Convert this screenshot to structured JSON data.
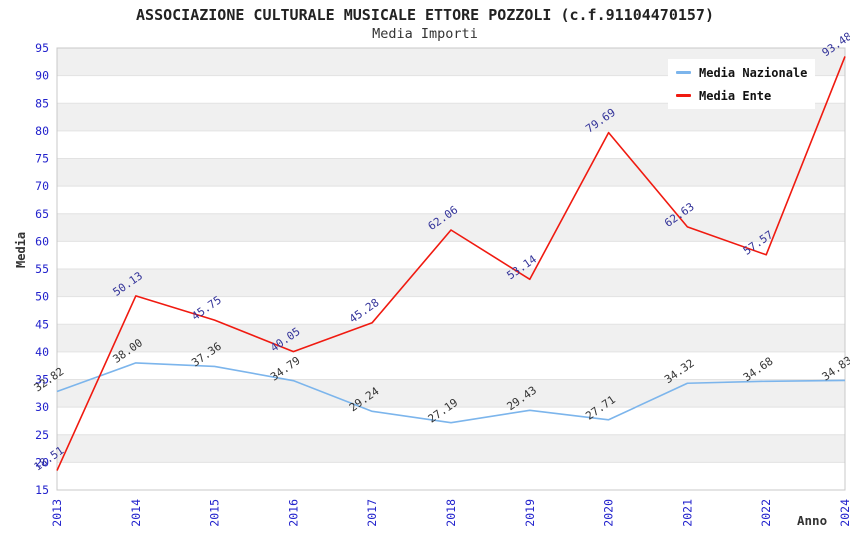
{
  "header": {
    "title": "ASSOCIAZIONE CULTURALE MUSICALE ETTORE POZZOLI (c.f.91104470157)",
    "subtitle": "Media Importi"
  },
  "legend": {
    "items": [
      {
        "label": "Media Nazionale",
        "color": "#7cb5ec"
      },
      {
        "label": "Media Ente",
        "color": "#f01a10"
      }
    ]
  },
  "axes": {
    "y_title": "Media",
    "x_title": "Anno"
  },
  "chart_data": {
    "type": "line",
    "title": "ASSOCIAZIONE CULTURALE MUSICALE ETTORE POZZOLI (c.f.91104470157)",
    "subtitle": "Media Importi",
    "xlabel": "Anno",
    "ylabel": "Media",
    "x": [
      "2013",
      "2014",
      "2015",
      "2016",
      "2017",
      "2018",
      "2019",
      "2020",
      "2021",
      "2022",
      "2024"
    ],
    "series": [
      {
        "name": "Media Nazionale",
        "color": "#7cb5ec",
        "label_color": "#333333",
        "values": [
          32.82,
          38.0,
          37.36,
          34.79,
          29.24,
          27.19,
          29.43,
          27.71,
          34.32,
          34.68,
          34.83
        ]
      },
      {
        "name": "Media Ente",
        "color": "#f01a10",
        "label_color": "#333399",
        "values": [
          18.51,
          50.13,
          45.75,
          40.05,
          45.28,
          62.06,
          53.14,
          79.69,
          62.63,
          57.57,
          93.48
        ]
      }
    ],
    "ylim": [
      15,
      95
    ],
    "ytick_step": 5,
    "tick_label_color": "#2222cc",
    "band_colors": [
      "#f0f0f0",
      "#ffffff"
    ],
    "grid": "horizontal-bands",
    "legend_position": "top-right"
  }
}
